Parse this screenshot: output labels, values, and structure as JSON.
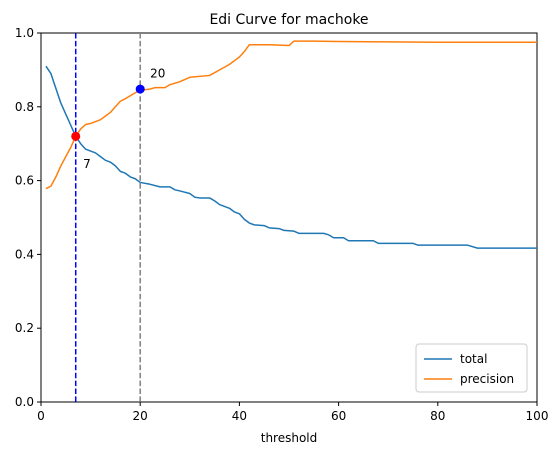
{
  "chart_data": {
    "type": "line",
    "title": "Edi Curve for machoke",
    "xlabel": "threshold",
    "ylabel": "",
    "xlim": [
      0,
      100
    ],
    "ylim": [
      0.0,
      1.0
    ],
    "x_ticks": [
      "0",
      "20",
      "40",
      "60",
      "80",
      "100"
    ],
    "y_ticks": [
      "0.0",
      "0.2",
      "0.4",
      "0.6",
      "0.8",
      "1.0"
    ],
    "grid": false,
    "legend_position": "lower-right",
    "series": [
      {
        "name": "total",
        "color": "#1f77b4",
        "points": [
          [
            1,
            0.91
          ],
          [
            2,
            0.89
          ],
          [
            3,
            0.85
          ],
          [
            4,
            0.81
          ],
          [
            5,
            0.78
          ],
          [
            6,
            0.75
          ],
          [
            7,
            0.72
          ],
          [
            8,
            0.7
          ],
          [
            9,
            0.685
          ],
          [
            10,
            0.68
          ],
          [
            11,
            0.675
          ],
          [
            12,
            0.665
          ],
          [
            13,
            0.655
          ],
          [
            14,
            0.65
          ],
          [
            15,
            0.64
          ],
          [
            16,
            0.625
          ],
          [
            17,
            0.62
          ],
          [
            18,
            0.61
          ],
          [
            19,
            0.605
          ],
          [
            20,
            0.595
          ],
          [
            22,
            0.59
          ],
          [
            24,
            0.583
          ],
          [
            26,
            0.583
          ],
          [
            27,
            0.575
          ],
          [
            28,
            0.572
          ],
          [
            30,
            0.565
          ],
          [
            31,
            0.555
          ],
          [
            32,
            0.553
          ],
          [
            34,
            0.553
          ],
          [
            35,
            0.545
          ],
          [
            36,
            0.535
          ],
          [
            37,
            0.53
          ],
          [
            38,
            0.525
          ],
          [
            39,
            0.515
          ],
          [
            40,
            0.51
          ],
          [
            41,
            0.495
          ],
          [
            42,
            0.485
          ],
          [
            43,
            0.48
          ],
          [
            45,
            0.478
          ],
          [
            46,
            0.472
          ],
          [
            48,
            0.47
          ],
          [
            49,
            0.465
          ],
          [
            51,
            0.463
          ],
          [
            52,
            0.457
          ],
          [
            57,
            0.457
          ],
          [
            58,
            0.453
          ],
          [
            59,
            0.445
          ],
          [
            61,
            0.445
          ],
          [
            62,
            0.437
          ],
          [
            67,
            0.437
          ],
          [
            68,
            0.43
          ],
          [
            75,
            0.43
          ],
          [
            76,
            0.425
          ],
          [
            86,
            0.425
          ],
          [
            88,
            0.417
          ],
          [
            100,
            0.417
          ]
        ]
      },
      {
        "name": "precision",
        "color": "#ff7f0e",
        "points": [
          [
            1,
            0.578
          ],
          [
            2,
            0.585
          ],
          [
            3,
            0.61
          ],
          [
            4,
            0.64
          ],
          [
            5,
            0.665
          ],
          [
            6,
            0.69
          ],
          [
            7,
            0.72
          ],
          [
            8,
            0.74
          ],
          [
            9,
            0.752
          ],
          [
            10,
            0.755
          ],
          [
            11,
            0.76
          ],
          [
            12,
            0.765
          ],
          [
            13,
            0.775
          ],
          [
            14,
            0.785
          ],
          [
            15,
            0.8
          ],
          [
            16,
            0.815
          ],
          [
            17,
            0.822
          ],
          [
            18,
            0.83
          ],
          [
            19,
            0.838
          ],
          [
            20,
            0.845
          ],
          [
            22,
            0.848
          ],
          [
            23,
            0.852
          ],
          [
            25,
            0.852
          ],
          [
            26,
            0.86
          ],
          [
            28,
            0.868
          ],
          [
            30,
            0.88
          ],
          [
            34,
            0.885
          ],
          [
            36,
            0.9
          ],
          [
            38,
            0.915
          ],
          [
            39,
            0.925
          ],
          [
            40,
            0.935
          ],
          [
            41,
            0.95
          ],
          [
            42,
            0.968
          ],
          [
            46,
            0.968
          ],
          [
            50,
            0.966
          ],
          [
            51,
            0.978
          ],
          [
            55,
            0.978
          ],
          [
            60,
            0.977
          ],
          [
            70,
            0.976
          ],
          [
            80,
            0.975
          ],
          [
            90,
            0.975
          ],
          [
            100,
            0.975
          ]
        ]
      }
    ],
    "vertical_lines": [
      {
        "x": 7,
        "color": "#0000ff"
      },
      {
        "x": 20,
        "color": "#808080"
      }
    ],
    "markers": [
      {
        "x": 7,
        "y": 0.72,
        "color": "#ff0000"
      },
      {
        "x": 20,
        "y": 0.848,
        "color": "#0000ff"
      }
    ],
    "annotations": [
      {
        "text": "7",
        "x": 8.5,
        "y": 0.645
      },
      {
        "text": "20",
        "x": 22,
        "y": 0.89
      }
    ]
  }
}
